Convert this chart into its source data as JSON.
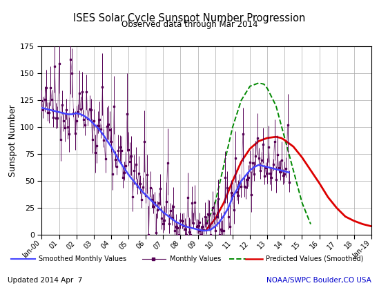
{
  "title": "ISES Solar Cycle Sunspot Number Progression",
  "subtitle": "Observed data through Mar 2014",
  "ylabel": "Sunspot Number",
  "footer_left": "Updated 2014 Apr  7",
  "footer_right": "NOAA/SWPC Boulder,CO USA",
  "ylim": [
    0,
    175
  ],
  "yticks": [
    0,
    25,
    50,
    75,
    100,
    125,
    150,
    175
  ],
  "background_color": "#ffffff",
  "grid_color": "#aaaaaa",
  "title_color": "#000000",
  "footer_right_color": "#0000cc",
  "smoothed_color": "#4444ff",
  "monthly_color": "#550055",
  "predicted_old_color": "#008800",
  "predicted_new_color": "#dd0000",
  "x_start_year": 2000.0,
  "x_end_year": 2019.0,
  "xtick_labels": [
    "Jan-00",
    "01",
    "02",
    "03",
    "04",
    "05",
    "06",
    "07",
    "08",
    "09",
    "10",
    "11",
    "12",
    "13",
    "14",
    "15",
    "16",
    "17",
    "18",
    "Jan-19"
  ],
  "smoothed_x": [
    2000.0,
    2000.25,
    2000.5,
    2000.75,
    2001.0,
    2001.25,
    2001.5,
    2001.75,
    2002.0,
    2002.25,
    2002.5,
    2002.75,
    2003.0,
    2003.25,
    2003.5,
    2003.75,
    2004.0,
    2004.25,
    2004.5,
    2004.75,
    2005.0,
    2005.25,
    2005.5,
    2005.75,
    2006.0,
    2006.25,
    2006.5,
    2006.75,
    2007.0,
    2007.25,
    2007.5,
    2007.75,
    2008.0,
    2008.25,
    2008.5,
    2008.75,
    2009.0,
    2009.25,
    2009.5,
    2009.75,
    2010.0,
    2010.25,
    2010.5,
    2010.75,
    2011.0,
    2011.25,
    2011.5,
    2011.75,
    2012.0,
    2012.25,
    2012.5,
    2012.75,
    2013.0,
    2013.25,
    2013.5,
    2013.75,
    2014.0,
    2014.25
  ],
  "smoothed_y": [
    118,
    117,
    116,
    115,
    114,
    113,
    112,
    112,
    113,
    112,
    110,
    107,
    103,
    99,
    94,
    88,
    82,
    75,
    68,
    62,
    56,
    51,
    46,
    41,
    37,
    33,
    29,
    25,
    21,
    18,
    15,
    12,
    10,
    8,
    7,
    6,
    5,
    4,
    4,
    5,
    8,
    12,
    18,
    25,
    35,
    42,
    50,
    55,
    60,
    63,
    65,
    64,
    63,
    62,
    61,
    60,
    59,
    58
  ],
  "pred_old_x": [
    2009.5,
    2010.0,
    2010.5,
    2011.0,
    2011.5,
    2012.0,
    2012.5,
    2012.8,
    2013.0,
    2013.5,
    2014.0,
    2014.5,
    2015.0,
    2015.5
  ],
  "pred_old_y": [
    10,
    30,
    65,
    100,
    125,
    138,
    141,
    140,
    136,
    120,
    90,
    60,
    30,
    10
  ],
  "pred_new_x": [
    2009.5,
    2010.0,
    2010.5,
    2011.0,
    2011.5,
    2012.0,
    2012.5,
    2013.0,
    2013.5,
    2013.8,
    2014.0,
    2014.5,
    2015.0,
    2015.5,
    2016.0,
    2016.5,
    2017.0,
    2017.5,
    2018.0,
    2018.5,
    2019.0
  ],
  "pred_new_y": [
    5,
    15,
    30,
    50,
    68,
    80,
    87,
    90,
    91,
    90,
    88,
    82,
    72,
    60,
    48,
    35,
    25,
    17,
    13,
    10,
    8
  ]
}
